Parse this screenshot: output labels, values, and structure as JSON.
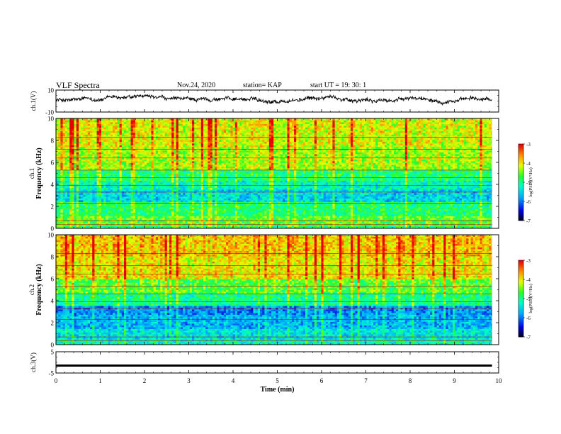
{
  "header": {
    "title": "VLF Spectra",
    "date": "Nov.24, 2020",
    "station": "station= KAP",
    "start": "start  UT  =   19: 30: 1"
  },
  "chart_data": [
    {
      "type": "line",
      "name": "ch1-waveform",
      "ylabel": "ch.1(V)",
      "ylim": [
        -10,
        10
      ],
      "yticks": [
        "10",
        "-10"
      ],
      "xlim": [
        0,
        10
      ],
      "trace": "noisy waveform between about -3 V and +5 V, mean about 2 V"
    },
    {
      "type": "heatmap",
      "name": "ch1-spectrogram",
      "ylabel": "ch.1\nFrequency (kHz)",
      "xlim": [
        0,
        10
      ],
      "ylim": [
        0,
        10
      ],
      "yticks": [
        "0",
        "2",
        "4",
        "6",
        "8",
        "10"
      ],
      "data_xmax_min": 9.85,
      "colorbar": {
        "label": "log(PSD)(V²/Hz)",
        "range": [
          -7,
          -3
        ],
        "ticks": [
          "-3",
          "-4",
          "-5",
          "-6",
          "-7"
        ]
      },
      "bands": [
        {
          "f0": 0.0,
          "f1": 0.4,
          "value": -4.8
        },
        {
          "f0": 0.4,
          "f1": 1.2,
          "value": -4.6
        },
        {
          "f0": 1.2,
          "f1": 2.5,
          "value": -4.9
        },
        {
          "f0": 2.5,
          "f1": 3.6,
          "value": -5.5
        },
        {
          "f0": 3.6,
          "f1": 4.4,
          "value": -5.2
        },
        {
          "f0": 4.4,
          "f1": 5.3,
          "value": -4.9
        },
        {
          "f0": 5.3,
          "f1": 7.5,
          "value": -4.3
        },
        {
          "f0": 7.5,
          "f1": 10.0,
          "value": -4.1
        }
      ]
    },
    {
      "type": "heatmap",
      "name": "ch2-spectrogram",
      "ylabel": "ch.2\nFrequency (kHz)",
      "xlim": [
        0,
        10
      ],
      "ylim": [
        0,
        10
      ],
      "yticks": [
        "0",
        "2",
        "4",
        "6",
        "8",
        "10"
      ],
      "data_xmax_min": 9.85,
      "colorbar": {
        "label": "log(PSD)(V²/Hz)",
        "range": [
          -7,
          -3
        ],
        "ticks": [
          "-3",
          "-4",
          "-5",
          "-6",
          "-7"
        ]
      },
      "bands": [
        {
          "f0": 0.0,
          "f1": 0.5,
          "value": -5.2
        },
        {
          "f0": 0.5,
          "f1": 1.5,
          "value": -5.4
        },
        {
          "f0": 1.5,
          "f1": 2.8,
          "value": -5.7
        },
        {
          "f0": 2.8,
          "f1": 3.6,
          "value": -5.9
        },
        {
          "f0": 3.6,
          "f1": 4.6,
          "value": -5.0
        },
        {
          "f0": 4.6,
          "f1": 6.0,
          "value": -4.6
        },
        {
          "f0": 6.0,
          "f1": 8.0,
          "value": -4.0
        },
        {
          "f0": 8.0,
          "f1": 10.0,
          "value": -3.8
        }
      ]
    },
    {
      "type": "line",
      "name": "ch3-waveform",
      "ylabel": "ch.3(V)",
      "ylim": [
        -5,
        5
      ],
      "yticks": [
        "5",
        "-5"
      ],
      "xlim": [
        0,
        10
      ],
      "xlabel": "Time (min)",
      "xticks": [
        "0",
        "1",
        "2",
        "3",
        "4",
        "5",
        "6",
        "7",
        "8",
        "9",
        "10"
      ],
      "trace": "nearly flat band centred near -1.5 V"
    }
  ]
}
